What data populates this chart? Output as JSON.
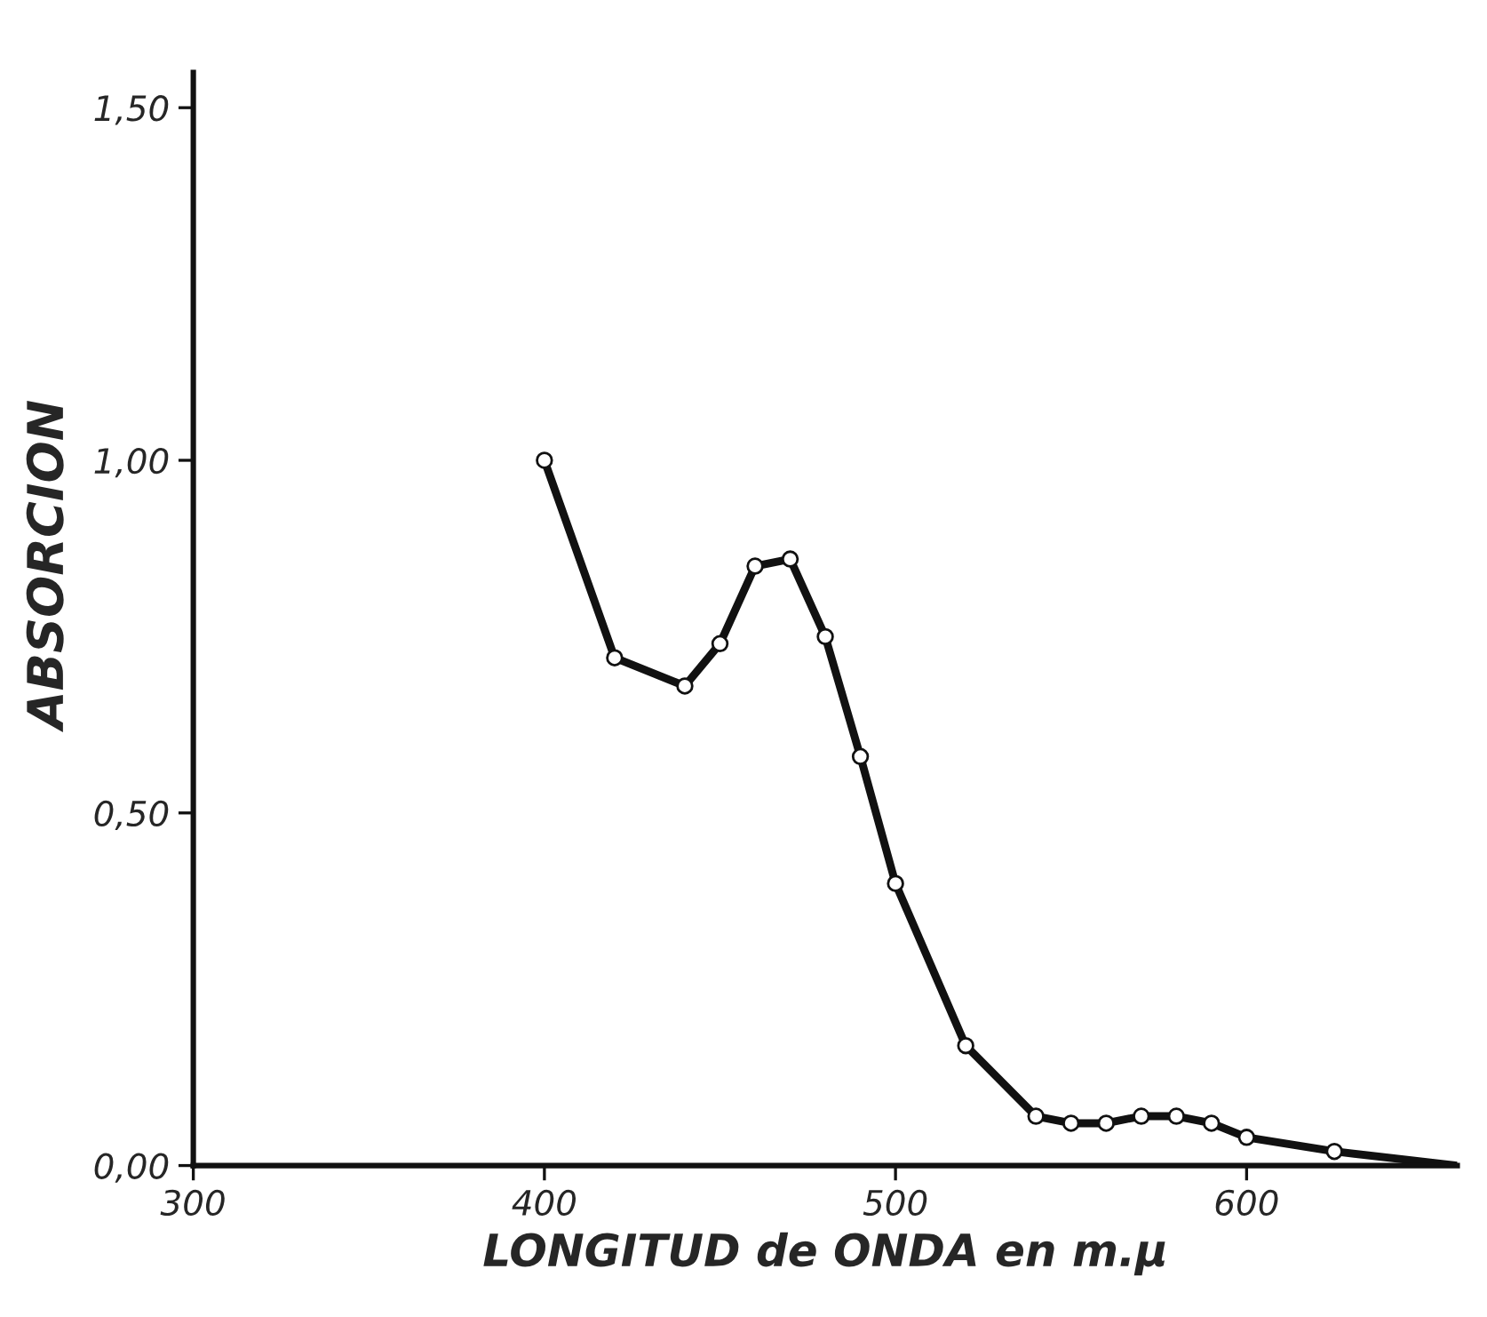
{
  "chart_data": {
    "type": "line",
    "xlabel": "LONGITUD de ONDA en m.μ",
    "ylabel": "ABSORCION",
    "series": [
      {
        "color": "#111111",
        "marker": "circle",
        "x": [
          400,
          420,
          440,
          450,
          460,
          470,
          480,
          490,
          500,
          520,
          540,
          550,
          560,
          570,
          580,
          590,
          600,
          625
        ],
        "values": [
          1.0,
          0.72,
          0.68,
          0.74,
          0.85,
          0.86,
          0.75,
          0.58,
          0.4,
          0.17,
          0.07,
          0.06,
          0.06,
          0.07,
          0.07,
          0.06,
          0.04,
          0.02
        ]
      },
      {
        "color": "#111111",
        "marker": "none",
        "x": [
          625,
          660
        ],
        "values": [
          0.02,
          0.0
        ]
      }
    ],
    "xlim": [
      300,
      660
    ],
    "ylim": [
      0,
      1.55
    ],
    "xticks": [
      300,
      400,
      500,
      600
    ],
    "yticks": [
      {
        "value": 0,
        "label": "0,00"
      },
      {
        "value": 0.5,
        "label": "0,50"
      },
      {
        "value": 1.0,
        "label": "1,00"
      },
      {
        "value": 1.5,
        "label": "1,50"
      }
    ],
    "grid": false
  }
}
